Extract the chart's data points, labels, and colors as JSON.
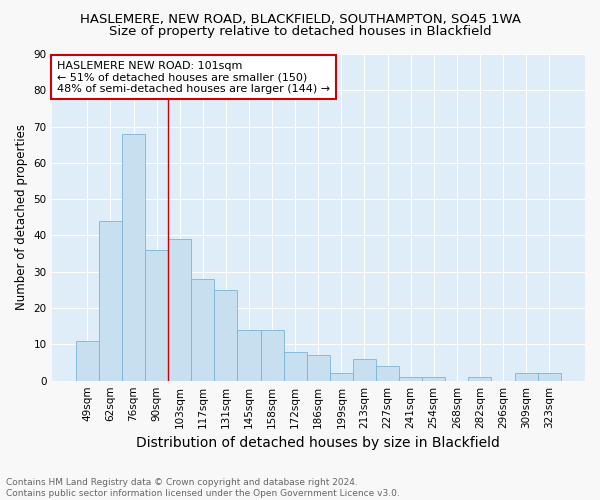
{
  "title": "HASLEMERE, NEW ROAD, BLACKFIELD, SOUTHAMPTON, SO45 1WA",
  "subtitle": "Size of property relative to detached houses in Blackfield",
  "xlabel": "Distribution of detached houses by size in Blackfield",
  "ylabel": "Number of detached properties",
  "categories": [
    "49sqm",
    "62sqm",
    "76sqm",
    "90sqm",
    "103sqm",
    "117sqm",
    "131sqm",
    "145sqm",
    "158sqm",
    "172sqm",
    "186sqm",
    "199sqm",
    "213sqm",
    "227sqm",
    "241sqm",
    "254sqm",
    "268sqm",
    "282sqm",
    "296sqm",
    "309sqm",
    "323sqm"
  ],
  "values": [
    11,
    44,
    68,
    36,
    39,
    28,
    25,
    14,
    14,
    8,
    7,
    2,
    6,
    4,
    1,
    1,
    0,
    1,
    0,
    2,
    2
  ],
  "bar_color": "#c8dff0",
  "bar_edgecolor": "#7ab4d8",
  "vline_x_idx": 4,
  "vline_color": "#cc0000",
  "annotation_text": "HASLEMERE NEW ROAD: 101sqm\n← 51% of detached houses are smaller (150)\n48% of semi-detached houses are larger (144) →",
  "annotation_box_facecolor": "#ffffff",
  "annotation_box_edgecolor": "#cc0000",
  "ylim": [
    0,
    90
  ],
  "yticks": [
    0,
    10,
    20,
    30,
    40,
    50,
    60,
    70,
    80,
    90
  ],
  "background_color": "#ddeeff",
  "plot_bg_color": "#deedf8",
  "grid_color": "#ffffff",
  "footer": "Contains HM Land Registry data © Crown copyright and database right 2024.\nContains public sector information licensed under the Open Government Licence v3.0.",
  "title_fontsize": 9.5,
  "subtitle_fontsize": 9.5,
  "xlabel_fontsize": 10,
  "ylabel_fontsize": 8.5,
  "tick_fontsize": 7.5,
  "annotation_fontsize": 8,
  "footer_fontsize": 6.5
}
